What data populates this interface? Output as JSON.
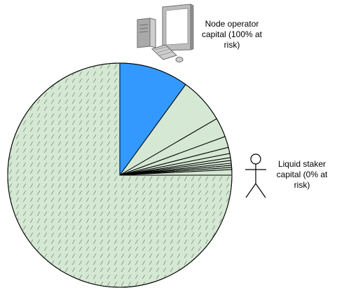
{
  "diagram": {
    "node_operator": {
      "label": "Node operator capital (100% at risk)",
      "icon": "desktop-computer-icon",
      "fill_color": "#3399ff"
    },
    "liquid_staker": {
      "label": "Liquid staker capital (0% at risk)",
      "icon": "stick-figure-person-icon",
      "fill_color": "#d5e8d4"
    },
    "pie": {
      "type": "pie",
      "start_from": "top, clockwise",
      "hatched_remainder": true,
      "slices": [
        {
          "role": "node_operator",
          "value": 0.1
        },
        {
          "role": "liquid_staker",
          "value": 0.066
        },
        {
          "role": "liquid_staker",
          "value": 0.028
        },
        {
          "role": "liquid_staker",
          "value": 0.016
        },
        {
          "role": "liquid_staker",
          "value": 0.009
        },
        {
          "role": "liquid_staker",
          "value": 0.006
        },
        {
          "role": "liquid_staker",
          "value": 0.004
        },
        {
          "role": "liquid_staker",
          "value": 0.004
        },
        {
          "role": "liquid_staker",
          "value": 0.003
        },
        {
          "role": "liquid_staker",
          "value": 0.003
        },
        {
          "role": "liquid_staker",
          "value": 0.003
        },
        {
          "role": "liquid_staker",
          "value": 0.008
        },
        {
          "role": "liquid_staker",
          "value": 0.75
        }
      ]
    }
  }
}
